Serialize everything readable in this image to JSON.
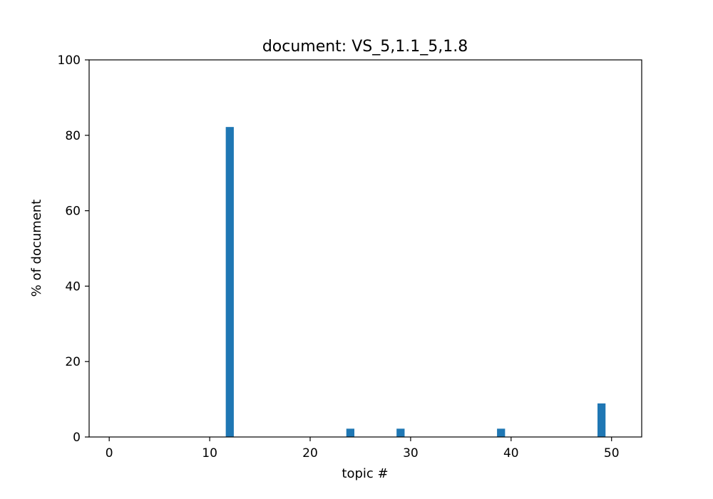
{
  "chart_data": {
    "type": "bar",
    "title": "document: VS_5,1.1_5,1.8",
    "xlabel": "topic #",
    "ylabel": "% of document",
    "xlim": [
      -2,
      53
    ],
    "ylim": [
      0,
      100
    ],
    "xticks": [
      0,
      10,
      20,
      30,
      40,
      50
    ],
    "yticks": [
      0,
      20,
      40,
      60,
      80,
      100
    ],
    "bar_color": "#1f77b4",
    "grid": false,
    "x": [
      0,
      1,
      2,
      3,
      4,
      5,
      6,
      7,
      8,
      9,
      10,
      11,
      12,
      13,
      14,
      15,
      16,
      17,
      18,
      19,
      20,
      21,
      22,
      23,
      24,
      25,
      26,
      27,
      28,
      29,
      30,
      31,
      32,
      33,
      34,
      35,
      36,
      37,
      38,
      39,
      40,
      41,
      42,
      43,
      44,
      45,
      46,
      47,
      48,
      49,
      50
    ],
    "values": [
      0,
      0,
      0,
      0,
      0,
      0,
      0,
      0,
      0,
      0,
      0,
      0,
      82.2,
      0,
      0,
      0,
      0,
      0,
      0,
      0,
      0,
      0,
      0,
      0,
      2.2,
      0,
      0,
      0,
      0,
      2.2,
      0,
      0,
      0,
      0,
      0,
      0,
      0,
      0,
      0,
      2.2,
      0,
      0,
      0,
      0,
      0,
      0,
      0,
      0,
      0,
      8.9,
      0
    ]
  }
}
